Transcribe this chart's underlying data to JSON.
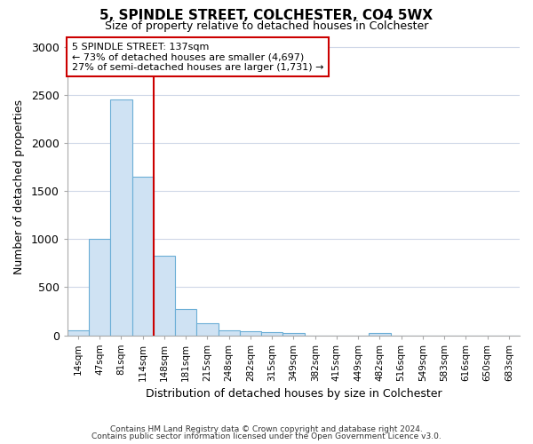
{
  "title1": "5, SPINDLE STREET, COLCHESTER, CO4 5WX",
  "title2": "Size of property relative to detached houses in Colchester",
  "xlabel": "Distribution of detached houses by size in Colchester",
  "ylabel": "Number of detached properties",
  "categories": [
    "14sqm",
    "47sqm",
    "81sqm",
    "114sqm",
    "148sqm",
    "181sqm",
    "215sqm",
    "248sqm",
    "282sqm",
    "315sqm",
    "349sqm",
    "382sqm",
    "415sqm",
    "449sqm",
    "482sqm",
    "516sqm",
    "549sqm",
    "583sqm",
    "616sqm",
    "650sqm",
    "683sqm"
  ],
  "values": [
    55,
    1000,
    2460,
    1650,
    830,
    275,
    125,
    50,
    45,
    35,
    25,
    0,
    0,
    0,
    20,
    0,
    0,
    0,
    0,
    0,
    0
  ],
  "bar_color": "#cfe2f3",
  "bar_edge_color": "#6baed6",
  "vline_color": "#cc0000",
  "vline_index": 4,
  "annotation_line1": "5 SPINDLE STREET: 137sqm",
  "annotation_line2": "← 73% of detached houses are smaller (4,697)",
  "annotation_line3": "27% of semi-detached houses are larger (1,731) →",
  "ylim": [
    0,
    3100
  ],
  "yticks": [
    0,
    500,
    1000,
    1500,
    2000,
    2500,
    3000
  ],
  "footer1": "Contains HM Land Registry data © Crown copyright and database right 2024.",
  "footer2": "Contains public sector information licensed under the Open Government Licence v3.0.",
  "bg_color": "#ffffff",
  "plot_bg_color": "#ffffff"
}
